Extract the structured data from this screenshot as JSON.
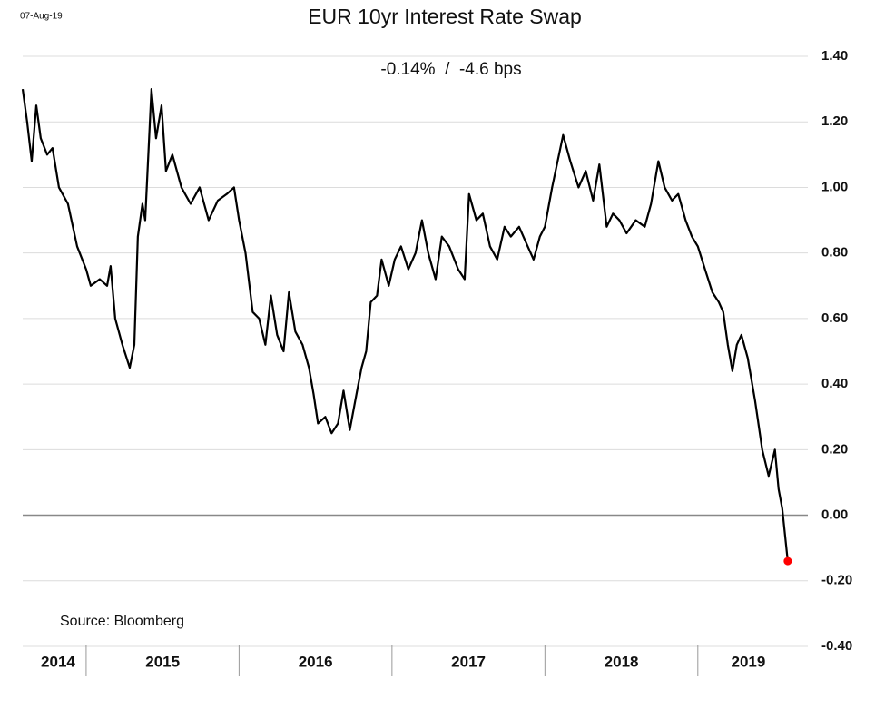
{
  "chart_data": {
    "type": "line",
    "date_label": "07-Aug-19",
    "title": "EUR 10yr Interest Rate Swap",
    "subtitle": "-0.14%  /  -4.6 bps",
    "source": "Source: Bloomberg",
    "categories": [
      "2014",
      "2015",
      "2016",
      "2017",
      "2018",
      "2019"
    ],
    "xticks": [
      2015,
      2016,
      2017,
      2018,
      2019
    ],
    "xlim": [
      2014.585,
      2019.66
    ],
    "x": [
      2014.585,
      2014.614,
      2014.644,
      2014.674,
      2014.703,
      2014.745,
      2014.78,
      2014.822,
      2014.881,
      2014.941,
      2015.0,
      2015.03,
      2015.089,
      2015.137,
      2015.16,
      2015.19,
      2015.237,
      2015.285,
      2015.315,
      2015.338,
      2015.368,
      2015.386,
      2015.427,
      2015.457,
      2015.493,
      2015.522,
      2015.564,
      2015.623,
      2015.683,
      2015.742,
      2015.801,
      2015.861,
      2015.92,
      2015.967,
      2016.0,
      2016.042,
      2016.089,
      2016.131,
      2016.172,
      2016.208,
      2016.249,
      2016.291,
      2016.326,
      2016.368,
      2016.415,
      2016.457,
      2016.487,
      2016.516,
      2016.564,
      2016.605,
      2016.647,
      2016.683,
      2016.724,
      2016.772,
      2016.801,
      2016.831,
      2016.861,
      2016.902,
      2016.932,
      2016.979,
      2017.018,
      2017.059,
      2017.107,
      2017.154,
      2017.196,
      2017.237,
      2017.285,
      2017.326,
      2017.374,
      2017.433,
      2017.475,
      2017.504,
      2017.552,
      2017.594,
      2017.641,
      2017.688,
      2017.736,
      2017.777,
      2017.831,
      2017.878,
      2017.926,
      2017.967,
      2018.0,
      2018.047,
      2018.083,
      2018.119,
      2018.166,
      2018.22,
      2018.267,
      2018.315,
      2018.356,
      2018.404,
      2018.445,
      2018.487,
      2018.534,
      2018.594,
      2018.653,
      2018.694,
      2018.742,
      2018.783,
      2018.831,
      2018.872,
      2018.92,
      2018.961,
      2019.0,
      2019.047,
      2019.095,
      2019.137,
      2019.166,
      2019.196,
      2019.226,
      2019.255,
      2019.285,
      2019.326,
      2019.374,
      2019.421,
      2019.463,
      2019.504,
      2019.528,
      2019.552,
      2019.588
    ],
    "values": [
      1.3,
      1.2,
      1.08,
      1.25,
      1.15,
      1.1,
      1.12,
      1.0,
      0.95,
      0.82,
      0.75,
      0.7,
      0.72,
      0.7,
      0.76,
      0.6,
      0.52,
      0.45,
      0.52,
      0.85,
      0.95,
      0.9,
      1.3,
      1.15,
      1.25,
      1.05,
      1.1,
      1.0,
      0.95,
      1.0,
      0.9,
      0.96,
      0.98,
      1.0,
      0.9,
      0.8,
      0.62,
      0.6,
      0.52,
      0.67,
      0.55,
      0.5,
      0.68,
      0.56,
      0.52,
      0.45,
      0.37,
      0.28,
      0.3,
      0.25,
      0.28,
      0.38,
      0.26,
      0.38,
      0.45,
      0.5,
      0.65,
      0.67,
      0.78,
      0.7,
      0.78,
      0.82,
      0.75,
      0.8,
      0.9,
      0.8,
      0.72,
      0.85,
      0.82,
      0.75,
      0.72,
      0.98,
      0.9,
      0.92,
      0.82,
      0.78,
      0.88,
      0.85,
      0.88,
      0.83,
      0.78,
      0.85,
      0.88,
      1.0,
      1.08,
      1.16,
      1.08,
      1.0,
      1.05,
      0.96,
      1.07,
      0.88,
      0.92,
      0.9,
      0.86,
      0.9,
      0.88,
      0.95,
      1.08,
      1.0,
      0.96,
      0.98,
      0.9,
      0.85,
      0.82,
      0.75,
      0.68,
      0.65,
      0.62,
      0.52,
      0.44,
      0.52,
      0.55,
      0.48,
      0.35,
      0.2,
      0.12,
      0.2,
      0.08,
      0.02,
      -0.14
    ],
    "color": "#000000",
    "last_point_color": "#ff0000",
    "ylim": [
      -0.4,
      1.4
    ],
    "yticks": [
      {
        "value": -0.4,
        "label": "-0.40"
      },
      {
        "value": -0.2,
        "label": "-0.20"
      },
      {
        "value": 0,
        "label": "0.00"
      },
      {
        "value": 0.2,
        "label": "0.20"
      },
      {
        "value": 0.4,
        "label": "0.40"
      },
      {
        "value": 0.6,
        "label": "0.60"
      },
      {
        "value": 0.8,
        "label": "0.80"
      },
      {
        "value": 1.0,
        "label": "1.00"
      },
      {
        "value": 1.2,
        "label": "1.20"
      },
      {
        "value": 1.4,
        "label": "1.40"
      }
    ],
    "grid": true
  }
}
